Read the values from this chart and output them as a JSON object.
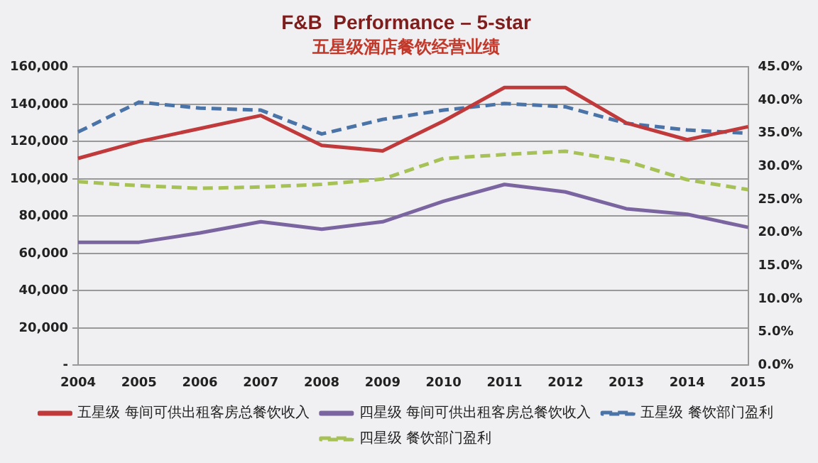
{
  "chart_data": {
    "type": "line",
    "title": "F&B  Performance – 5-star",
    "subtitle": "五星级酒店餐饮经营业绩",
    "categories": [
      "2004",
      "2005",
      "2006",
      "2007",
      "2008",
      "2009",
      "2010",
      "2011",
      "2012",
      "2013",
      "2014",
      "2015"
    ],
    "series": [
      {
        "name": "五星级 每间可供出租客房总餐饮收入",
        "color": "#c0393b",
        "line_style": "solid",
        "values": [
          111000,
          120000,
          127000,
          134000,
          118000,
          115000,
          131000,
          149000,
          149000,
          130000,
          121000,
          128000
        ]
      },
      {
        "name": "四星级 每间可供出租客房总餐饮收入",
        "color": "#7a65a0",
        "line_style": "solid",
        "values": [
          66000,
          66000,
          71000,
          77000,
          73000,
          77000,
          88000,
          97000,
          93000,
          84000,
          81000,
          74000
        ]
      },
      {
        "name": "五星级 餐饮部门盈利",
        "color": "#4a74a8",
        "line_style": "dashed",
        "axis": "y2",
        "values": [
          35.2,
          39.7,
          38.8,
          38.5,
          34.9,
          37.1,
          38.5,
          39.5,
          39.0,
          36.5,
          35.5,
          35.0
        ]
      },
      {
        "name": "四星级 餐饮部门盈利",
        "color": "#a6c256",
        "line_style": "dashed",
        "axis": "y2",
        "values": [
          27.7,
          27.1,
          26.7,
          26.9,
          27.3,
          28.1,
          31.2,
          31.8,
          32.3,
          30.8,
          28.0,
          26.5
        ]
      }
    ],
    "ylim": [
      0,
      160000
    ],
    "yticks": [
      {
        "value": 0,
        "label": "-"
      },
      {
        "value": 20000,
        "label": "20,000"
      },
      {
        "value": 40000,
        "label": "40,000"
      },
      {
        "value": 60000,
        "label": "60,000"
      },
      {
        "value": 80000,
        "label": "80,000"
      },
      {
        "value": 100000,
        "label": "100,000"
      },
      {
        "value": 120000,
        "label": "120,000"
      },
      {
        "value": 140000,
        "label": "140,000"
      },
      {
        "value": 160000,
        "label": "160,000"
      }
    ],
    "y2lim": [
      0,
      45
    ],
    "y2ticks": [
      {
        "value": 0,
        "label": "0.0%"
      },
      {
        "value": 5,
        "label": "5.0%"
      },
      {
        "value": 10,
        "label": "10.0%"
      },
      {
        "value": 15,
        "label": "15.0%"
      },
      {
        "value": 20,
        "label": "20.0%"
      },
      {
        "value": 25,
        "label": "25.0%"
      },
      {
        "value": 30,
        "label": "30.0%"
      },
      {
        "value": 35,
        "label": "35.0%"
      },
      {
        "value": 40,
        "label": "40.0%"
      },
      {
        "value": 45,
        "label": "45.0%"
      }
    ],
    "grid": "y",
    "legend": "bottom",
    "marker": "none"
  }
}
